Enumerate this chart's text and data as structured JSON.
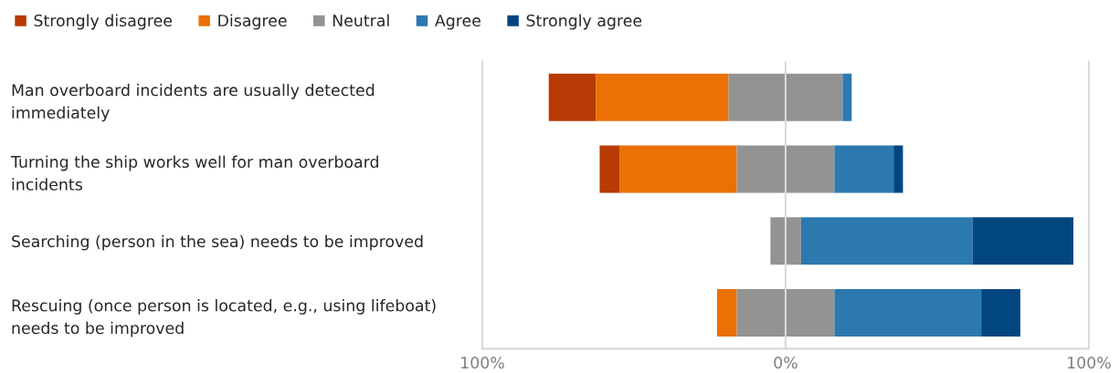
{
  "chart_data": {
    "type": "bar",
    "orientation": "horizontal",
    "categories": [
      "Man overboard incidents are usually detected\nimmediately",
      "Turning the ship works well for man overboard\nincidents",
      "Searching (person in the sea) needs to be improved",
      "Rescuing (once person is located, e.g., using lifeboat)\nneeds to be improved"
    ],
    "series": [
      {
        "name": "Strongly disagree",
        "color": "#b83a04",
        "values": [
          15.5,
          6.5,
          null,
          null
        ],
        "base": [
          -78.1,
          -61.3,
          null,
          null
        ]
      },
      {
        "name": "Disagree",
        "color": "#eb7006",
        "values": [
          43.8,
          38.7,
          null,
          6.5
        ],
        "base": [
          -62.6,
          -54.8,
          null,
          -22.6
        ]
      },
      {
        "name": "Neutral",
        "color": "#939393",
        "values": [
          37.6,
          32.2,
          10.1,
          32.2
        ],
        "base": [
          -18.8,
          -16.1,
          -5.0,
          -16.1
        ]
      },
      {
        "name": "Agree",
        "color": "#2c79b0",
        "values": [
          3.0,
          19.5,
          56.6,
          48.4
        ],
        "base": [
          18.8,
          16.1,
          5.1,
          16.1
        ]
      },
      {
        "name": "Strongly agree",
        "color": "#02467f",
        "values": [
          null,
          3.1,
          33.2,
          12.9
        ],
        "base": [
          null,
          35.6,
          61.7,
          64.5
        ]
      }
    ],
    "xlim": [
      -100,
      100
    ],
    "xticks": [
      {
        "value": -100,
        "label": "100%"
      },
      {
        "value": 0,
        "label": "0%"
      },
      {
        "value": 100,
        "label": "100%"
      }
    ],
    "grid": "x",
    "legend": "top left"
  }
}
